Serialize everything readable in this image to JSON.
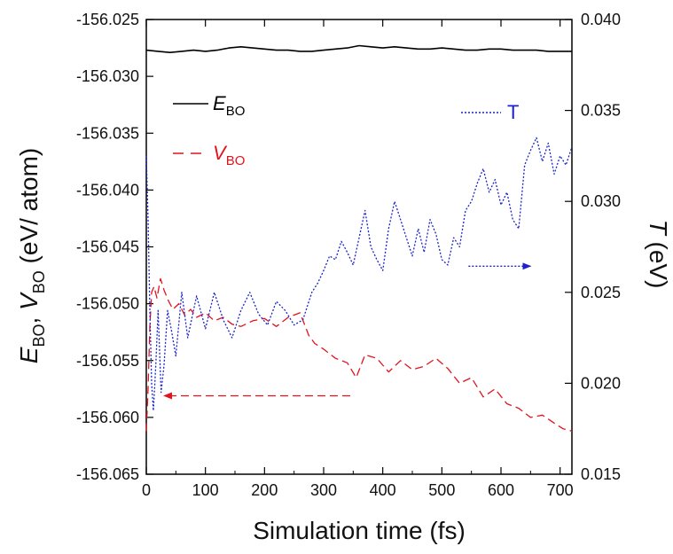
{
  "chart_data": {
    "type": "line",
    "xlabel": "Simulation time (fs)",
    "ylabel_left": {
      "main1": "E",
      "sub1": "BO",
      "sep": ", ",
      "main2": "V",
      "sub2": "BO",
      "unit": " (eV/ atom)"
    },
    "ylabel_right": {
      "main": "T",
      "unit": " (eV)"
    },
    "xlim": [
      0,
      720
    ],
    "ylim_left": [
      -156.065,
      -156.025
    ],
    "ylim_right": [
      0.015,
      0.04
    ],
    "x_ticks": [
      0,
      100,
      200,
      300,
      400,
      500,
      600,
      700
    ],
    "x_tick_labels": [
      "0",
      "100",
      "200",
      "300",
      "400",
      "500",
      "600",
      "700"
    ],
    "y_left_ticks": [
      -156.025,
      -156.03,
      -156.035,
      -156.04,
      -156.045,
      -156.05,
      -156.055,
      -156.06,
      -156.065
    ],
    "y_left_tick_labels": [
      "-156.025",
      "-156.030",
      "-156.035",
      "-156.040",
      "-156.045",
      "-156.050",
      "-156.055",
      "-156.060",
      "-156.065"
    ],
    "y_right_ticks": [
      0.015,
      0.02,
      0.025,
      0.03,
      0.035,
      0.04
    ],
    "y_right_tick_labels": [
      "0.015",
      "0.020",
      "0.025",
      "0.030",
      "0.035",
      "0.040"
    ],
    "grid": false,
    "legend_placement": "inside-top-left and top-right",
    "series": [
      {
        "name": "E_BO",
        "legend": {
          "main": "E",
          "sub": "BO"
        },
        "axis": "left",
        "color": "#000000",
        "dash": "solid",
        "x": [
          0,
          20,
          40,
          60,
          80,
          100,
          120,
          140,
          160,
          180,
          200,
          220,
          240,
          260,
          280,
          300,
          320,
          340,
          360,
          380,
          400,
          420,
          440,
          460,
          480,
          500,
          520,
          540,
          560,
          580,
          600,
          620,
          640,
          660,
          680,
          700,
          720
        ],
        "y": [
          -156.0277,
          -156.0278,
          -156.0279,
          -156.0278,
          -156.0277,
          -156.0278,
          -156.0277,
          -156.0275,
          -156.0274,
          -156.0275,
          -156.0276,
          -156.0277,
          -156.0277,
          -156.0278,
          -156.0278,
          -156.0277,
          -156.0276,
          -156.0275,
          -156.0273,
          -156.0274,
          -156.0275,
          -156.0274,
          -156.0275,
          -156.0276,
          -156.0276,
          -156.0275,
          -156.0276,
          -156.0277,
          -156.0277,
          -156.0276,
          -156.0276,
          -156.0277,
          -156.0277,
          -156.0277,
          -156.0278,
          -156.0278,
          -156.0278
        ]
      },
      {
        "name": "V_BO",
        "legend": {
          "main": "V",
          "sub": "BO"
        },
        "axis": "left",
        "color": "#e0141e",
        "dash": "dashed",
        "x": [
          0,
          3,
          6,
          9,
          13,
          18,
          24,
          30,
          37,
          45,
          55,
          65,
          75,
          85,
          100,
          115,
          130,
          145,
          160,
          180,
          200,
          220,
          240,
          260,
          275,
          285,
          300,
          320,
          340,
          355,
          370,
          390,
          410,
          430,
          450,
          470,
          490,
          510,
          530,
          550,
          570,
          590,
          610,
          630,
          650,
          670,
          690,
          705,
          720
        ],
        "y": [
          -156.0612,
          -156.0575,
          -156.052,
          -156.049,
          -156.0485,
          -156.0495,
          -156.0478,
          -156.0488,
          -156.0497,
          -156.0505,
          -156.05,
          -156.051,
          -156.0505,
          -156.0512,
          -156.0508,
          -156.0515,
          -156.0512,
          -156.0518,
          -156.052,
          -156.0515,
          -156.0513,
          -156.052,
          -156.0512,
          -156.0508,
          -156.0528,
          -156.0535,
          -156.054,
          -156.0548,
          -156.0552,
          -156.0565,
          -156.0545,
          -156.0548,
          -156.056,
          -156.055,
          -156.0558,
          -156.0555,
          -156.0548,
          -156.0557,
          -156.057,
          -156.0565,
          -156.0582,
          -156.0575,
          -156.0588,
          -156.0592,
          -156.06,
          -156.0598,
          -156.0605,
          -156.061,
          -156.0612
        ]
      },
      {
        "name": "T",
        "legend": {
          "main": "T",
          "sub": ""
        },
        "axis": "right",
        "color": "#1a23c8",
        "dash": "dotted",
        "x": [
          0,
          3,
          6,
          9,
          12,
          16,
          20,
          25,
          30,
          36,
          42,
          50,
          60,
          70,
          85,
          100,
          115,
          130,
          145,
          160,
          175,
          190,
          205,
          220,
          235,
          250,
          265,
          280,
          290,
          300,
          310,
          320,
          330,
          340,
          350,
          360,
          370,
          380,
          390,
          400,
          410,
          420,
          430,
          440,
          450,
          460,
          470,
          480,
          490,
          500,
          510,
          520,
          530,
          540,
          550,
          560,
          570,
          580,
          590,
          600,
          610,
          620,
          630,
          640,
          650,
          660,
          670,
          680,
          690,
          700,
          710,
          720
        ],
        "y": [
          0.0325,
          0.029,
          0.024,
          0.02,
          0.0185,
          0.021,
          0.024,
          0.0195,
          0.021,
          0.024,
          0.023,
          0.0215,
          0.025,
          0.0225,
          0.0248,
          0.023,
          0.025,
          0.0235,
          0.0225,
          0.024,
          0.025,
          0.0238,
          0.0232,
          0.0245,
          0.024,
          0.0232,
          0.0235,
          0.025,
          0.0255,
          0.0262,
          0.027,
          0.0268,
          0.0278,
          0.0272,
          0.0265,
          0.028,
          0.0295,
          0.0275,
          0.0268,
          0.0262,
          0.0285,
          0.03,
          0.029,
          0.028,
          0.027,
          0.0285,
          0.0272,
          0.029,
          0.0282,
          0.0268,
          0.0265,
          0.028,
          0.0275,
          0.0295,
          0.03,
          0.031,
          0.0318,
          0.0305,
          0.0312,
          0.0298,
          0.0305,
          0.029,
          0.0285,
          0.032,
          0.0328,
          0.0335,
          0.0322,
          0.0332,
          0.0315,
          0.0325,
          0.032,
          0.033
        ]
      }
    ],
    "annotations": [
      {
        "name": "arrow-T-to-right-axis",
        "from_x": 545,
        "to_x": 650,
        "y_axis": "left",
        "y": -156.0467,
        "color": "#1a23c8",
        "dash": "dotted"
      },
      {
        "name": "arrow-VBO-to-left-axis",
        "from_x": 345,
        "to_x": 30,
        "y_axis": "left",
        "y": -156.0581,
        "color": "#e0141e",
        "dash": "dashed"
      }
    ]
  }
}
